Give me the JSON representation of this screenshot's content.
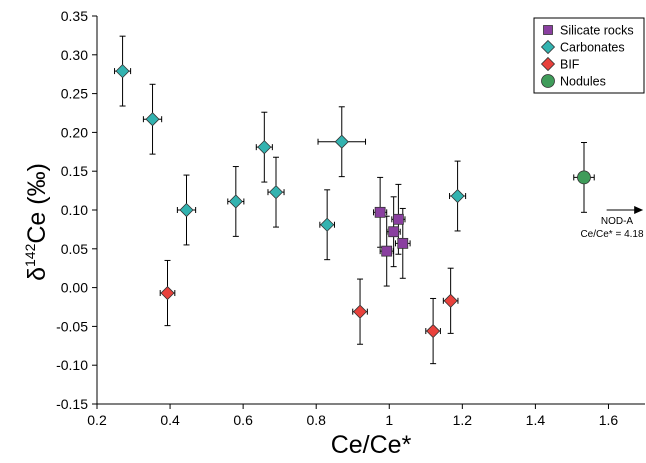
{
  "chart_data": {
    "type": "scatter",
    "xlabel": "Ce/Ce*",
    "ylabel": {
      "prefix": "δ",
      "superscript": "142",
      "suffix": "Ce (‰)"
    },
    "xlim": [
      0.2,
      1.7
    ],
    "ylim": [
      -0.15,
      0.35
    ],
    "x_ticks": [
      0.2,
      0.4,
      0.6,
      0.8,
      1.0,
      1.2,
      1.4,
      1.6
    ],
    "x_tick_labels": [
      "0.2",
      "0.4",
      "0.6",
      "0.8",
      "1",
      "1.2",
      "1.4",
      "1.6"
    ],
    "y_ticks": [
      -0.15,
      -0.1,
      -0.05,
      0.0,
      0.05,
      0.1,
      0.15,
      0.2,
      0.25,
      0.3,
      0.35
    ],
    "y_tick_labels": [
      "-0.15",
      "-0.10",
      "-0.05",
      "0.00",
      "0.05",
      "0.10",
      "0.15",
      "0.20",
      "0.25",
      "0.30",
      "0.35"
    ],
    "grid": false,
    "legend_position": "top-right",
    "series": [
      {
        "name": "Silicate rocks",
        "marker": "square",
        "color": "#8a3fa0",
        "points": [
          {
            "x": 0.975,
            "y": 0.097,
            "xerr": 0.018,
            "yerr": 0.045
          },
          {
            "x": 1.025,
            "y": 0.088,
            "xerr": 0.018,
            "yerr": 0.045
          },
          {
            "x": 1.012,
            "y": 0.072,
            "xerr": 0.018,
            "yerr": 0.045
          },
          {
            "x": 1.037,
            "y": 0.057,
            "xerr": 0.02,
            "yerr": 0.045
          },
          {
            "x": 0.993,
            "y": 0.047,
            "xerr": 0.018,
            "yerr": 0.045
          }
        ]
      },
      {
        "name": "Carbonates",
        "marker": "diamond",
        "color": "#33b3b0",
        "points": [
          {
            "x": 0.27,
            "y": 0.279,
            "xerr": 0.022,
            "yerr": 0.045
          },
          {
            "x": 0.352,
            "y": 0.217,
            "xerr": 0.025,
            "yerr": 0.045
          },
          {
            "x": 0.445,
            "y": 0.1,
            "xerr": 0.025,
            "yerr": 0.045
          },
          {
            "x": 0.58,
            "y": 0.111,
            "xerr": 0.022,
            "yerr": 0.045
          },
          {
            "x": 0.658,
            "y": 0.181,
            "xerr": 0.022,
            "yerr": 0.045
          },
          {
            "x": 0.69,
            "y": 0.123,
            "xerr": 0.022,
            "yerr": 0.045
          },
          {
            "x": 0.87,
            "y": 0.188,
            "xerr": 0.065,
            "yerr": 0.045
          },
          {
            "x": 0.83,
            "y": 0.081,
            "xerr": 0.02,
            "yerr": 0.045
          },
          {
            "x": 1.187,
            "y": 0.118,
            "xerr": 0.022,
            "yerr": 0.045
          }
        ]
      },
      {
        "name": "BIF",
        "marker": "diamond",
        "color": "#e8413c",
        "points": [
          {
            "x": 0.393,
            "y": -0.007,
            "xerr": 0.02,
            "yerr": 0.042
          },
          {
            "x": 0.92,
            "y": -0.031,
            "xerr": 0.02,
            "yerr": 0.042
          },
          {
            "x": 1.12,
            "y": -0.056,
            "xerr": 0.02,
            "yerr": 0.042
          },
          {
            "x": 1.168,
            "y": -0.017,
            "xerr": 0.02,
            "yerr": 0.042
          }
        ]
      },
      {
        "name": "Nodules",
        "marker": "circle",
        "color": "#3f9c5a",
        "points": [
          {
            "x": 1.533,
            "y": 0.142,
            "xerr": 0.028,
            "yerr": 0.045
          }
        ]
      }
    ],
    "annotation": {
      "lines": [
        "NOD-A",
        "Ce/Ce* = 4.18"
      ],
      "arrow_from": {
        "x": 1.595,
        "y": 0.1
      },
      "arrow_to": {
        "x": 1.695,
        "y": 0.1
      }
    }
  }
}
